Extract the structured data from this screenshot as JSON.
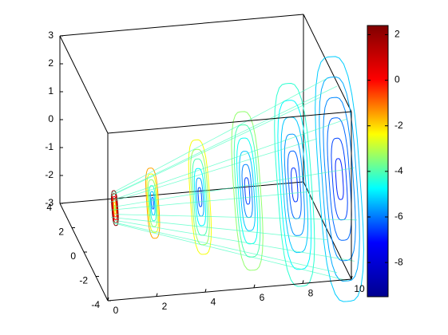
{
  "chart_data": {
    "type": "contourslice3d",
    "xlim": [
      0,
      10
    ],
    "xticks": [
      0,
      2,
      4,
      6,
      8,
      10
    ],
    "ylim": [
      -4,
      4
    ],
    "yticks": [
      -4,
      -2,
      0,
      2,
      4
    ],
    "zlim": [
      -3,
      3
    ],
    "zticks": [
      -3,
      -2,
      -1,
      0,
      1,
      2,
      3
    ],
    "colorbar": {
      "clim": [
        -9.5,
        2.4
      ],
      "ticks": [
        -8,
        -6,
        -4,
        -2,
        0,
        2
      ],
      "colormap": [
        "#00008f",
        "#0000ff",
        "#00ffff",
        "#ffff00",
        "#ff0000",
        "#800000"
      ]
    }
  }
}
